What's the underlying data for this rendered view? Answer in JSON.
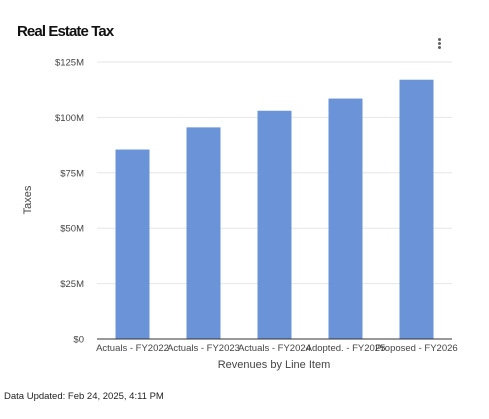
{
  "card": {
    "title": "Real Estate Tax",
    "menu_icon": "more-vert-icon"
  },
  "footer": {
    "data_updated": "Data Updated: Feb 24, 2025, 4:11 PM"
  },
  "chart_data": {
    "type": "bar",
    "title": "Real Estate Tax",
    "categories": [
      "Actuals - FY2022",
      "Actuals - FY2023",
      "Actuals - FY2024",
      "Adopted. - FY2025",
      "Proposed - FY2026"
    ],
    "values": [
      85500000,
      95500000,
      103000000,
      108500000,
      117000000
    ],
    "xlabel": "Revenues by Line Item",
    "ylabel": "Taxes",
    "ylim": [
      0,
      125000000
    ],
    "yticks": [
      0,
      25000000,
      50000000,
      75000000,
      100000000,
      125000000
    ],
    "ytick_labels": [
      "$0",
      "$25M",
      "$50M",
      "$75M",
      "$100M",
      "$125M"
    ],
    "grid": true,
    "legend": "none",
    "bar_color": "#6a93d8",
    "grid_color": "#e6e6e6",
    "axis_color": "#333333"
  }
}
